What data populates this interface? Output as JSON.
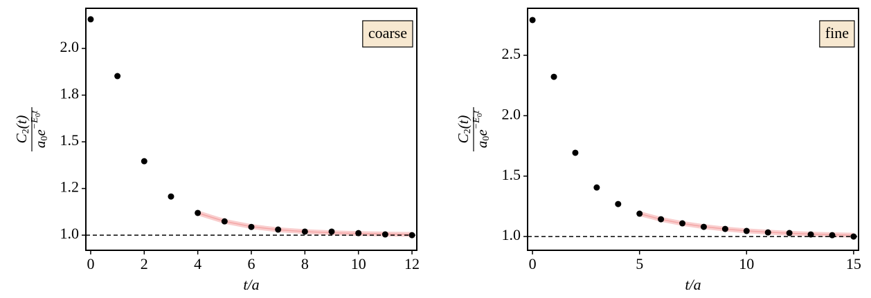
{
  "chart_data": [
    {
      "type": "scatter",
      "annotation": "coarse",
      "xlabel": "t/a",
      "ylabel": {
        "numerator": [
          "C",
          "2",
          "(t)"
        ],
        "denominator": [
          "a",
          "0",
          "e",
          "−E",
          "0",
          "t"
        ]
      },
      "x": [
        0,
        1,
        2,
        3,
        4,
        5,
        6,
        7,
        8,
        9,
        10,
        11,
        12
      ],
      "values": [
        2.156,
        1.852,
        1.396,
        1.207,
        1.119,
        1.074,
        1.044,
        1.03,
        1.019,
        1.019,
        1.011,
        1.004,
        1.0
      ],
      "color": "#000000",
      "fit": {
        "x": [
          4,
          5,
          6,
          7,
          8,
          9,
          10,
          11,
          12
        ],
        "values": [
          1.119,
          1.074,
          1.046,
          1.029,
          1.019,
          1.013,
          1.009,
          1.006,
          1.004
        ],
        "color": "#f4a6a6"
      },
      "hline": 1,
      "xlim": [
        -0.18,
        12.18
      ],
      "ylim": [
        0.919,
        2.215
      ],
      "xticks": [
        0,
        2,
        4,
        6,
        8,
        10,
        12
      ],
      "yticks": [
        {
          "value": 1.0,
          "label": "1.0"
        },
        {
          "value": 1.25,
          "label": "1.2"
        },
        {
          "value": 1.5,
          "label": "1.5"
        },
        {
          "value": 1.75,
          "label": "1.8"
        },
        {
          "value": 2.0,
          "label": "2.0"
        }
      ]
    },
    {
      "type": "scatter",
      "annotation": "fine",
      "xlabel": "t/a",
      "ylabel": {
        "numerator": [
          "C",
          "2",
          "(t)"
        ],
        "denominator": [
          "a",
          "0",
          "e",
          "−E",
          "0",
          "t"
        ]
      },
      "x": [
        0,
        1,
        2,
        3,
        4,
        5,
        6,
        7,
        8,
        9,
        10,
        11,
        12,
        13,
        14,
        15
      ],
      "values": [
        2.792,
        2.322,
        1.693,
        1.406,
        1.269,
        1.189,
        1.143,
        1.109,
        1.08,
        1.063,
        1.046,
        1.034,
        1.029,
        1.017,
        1.011,
        1.0
      ],
      "color": "#000000",
      "fit": {
        "x": [
          5,
          6,
          7,
          8,
          9,
          10,
          11,
          12,
          13,
          14,
          15
        ],
        "values": [
          1.189,
          1.142,
          1.108,
          1.082,
          1.062,
          1.047,
          1.036,
          1.027,
          1.02,
          1.015,
          1.011
        ],
        "color": "#f4a6a6"
      },
      "hline": 1,
      "xlim": [
        -0.23,
        15.23
      ],
      "ylim": [
        0.886,
        2.889
      ],
      "xticks": [
        0,
        5,
        10,
        15
      ],
      "yticks": [
        {
          "value": 1.0,
          "label": "1.0"
        },
        {
          "value": 1.5,
          "label": "1.5"
        },
        {
          "value": 2.0,
          "label": "2.0"
        },
        {
          "value": 2.5,
          "label": "2.5"
        }
      ]
    }
  ]
}
